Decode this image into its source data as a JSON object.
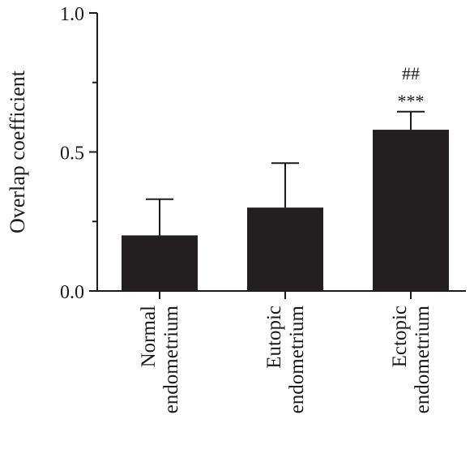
{
  "chart_data": {
    "type": "bar",
    "title": "",
    "xlabel": "",
    "ylabel": "Overlap coefficient",
    "categories": [
      [
        "Normal",
        "endometrium"
      ],
      [
        "Eutopic",
        "endometrium"
      ],
      [
        "Ectopic",
        "endometrium"
      ]
    ],
    "values": [
      0.2,
      0.3,
      0.58
    ],
    "error_plus": [
      0.13,
      0.16,
      0.065
    ],
    "annotations": [
      {
        "category_index": 2,
        "lines": [
          "##",
          "***"
        ]
      }
    ],
    "ylim": [
      0.0,
      1.0
    ],
    "yticks": [
      0.0,
      0.5,
      1.0
    ],
    "ytick_labels": [
      "0.0",
      "0.5",
      "1.0"
    ],
    "grid": false,
    "bar_color": "#231f20"
  }
}
